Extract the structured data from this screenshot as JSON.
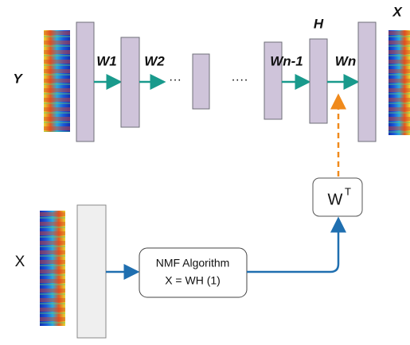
{
  "labels": {
    "y_input": "Y",
    "x_output": "X",
    "x_input": "X",
    "h": "H"
  },
  "weights": [
    "W1",
    "W2",
    "Wn-1",
    "Wn"
  ],
  "ellipses": [
    "···",
    "····"
  ],
  "nmf_box": {
    "line1": "NMF Algorithm",
    "line2": "X = WH (1)"
  },
  "wt_box": {
    "base": "W",
    "superscript": "T"
  }
}
